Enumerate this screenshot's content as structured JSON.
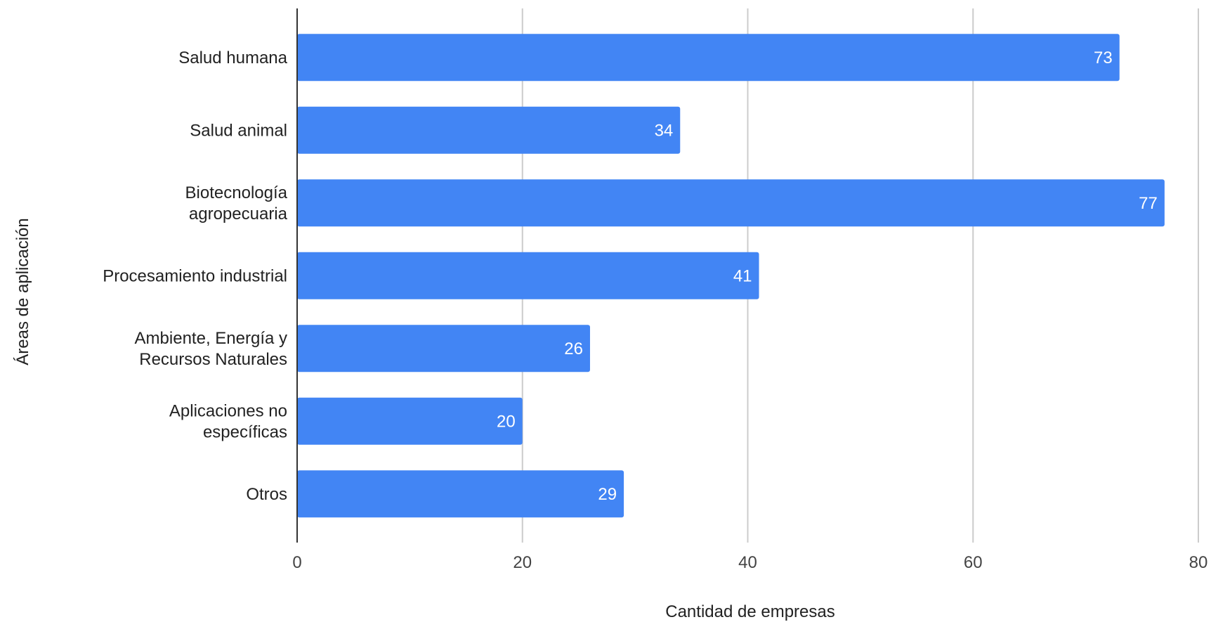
{
  "chart_data": {
    "type": "bar",
    "orientation": "horizontal",
    "title": "",
    "xlabel": "Cantidad de empresas",
    "ylabel": "Áreas de aplicación",
    "categories": [
      [
        "Salud humana"
      ],
      [
        "Salud animal"
      ],
      [
        "Biotecnología",
        "agropecuaria"
      ],
      [
        "Procesamiento industrial"
      ],
      [
        "Ambiente, Energía y",
        "Recursos Naturales"
      ],
      [
        "Aplicaciones no",
        "específicas"
      ],
      [
        "Otros"
      ]
    ],
    "values": [
      73,
      34,
      77,
      41,
      26,
      20,
      29
    ],
    "data_labels": [
      "73",
      "34",
      "77",
      "41",
      "26",
      "20",
      "29"
    ],
    "xlim": [
      0,
      80
    ],
    "xticks": [
      0,
      20,
      40,
      60,
      80
    ],
    "xtick_labels": [
      "0",
      "20",
      "40",
      "60",
      "80"
    ],
    "grid": "vertical",
    "legend": "none",
    "colors": {
      "bar": "#4285f4",
      "grid": "#cccccc",
      "axis": "#333333"
    }
  }
}
